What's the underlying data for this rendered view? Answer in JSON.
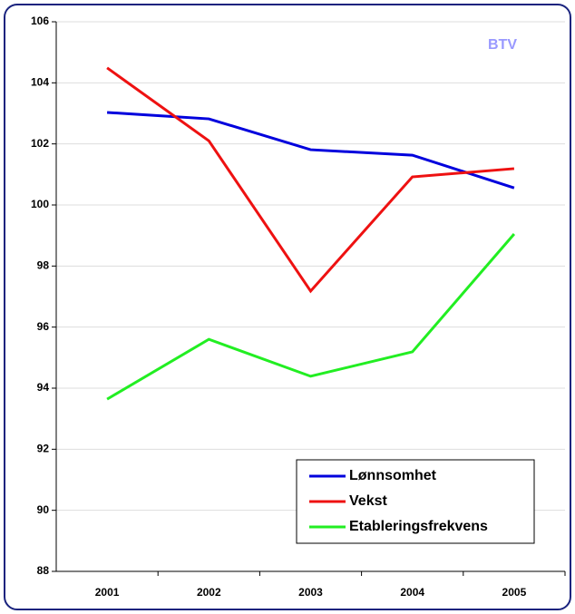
{
  "chart_data": {
    "type": "line",
    "annotation": "BTV",
    "categories": [
      "2001",
      "2002",
      "2003",
      "2004",
      "2005"
    ],
    "series": [
      {
        "name": "Lønnsomhet",
        "color": "#0000dd",
        "values": [
          103.03,
          102.82,
          101.81,
          101.63,
          100.56
        ]
      },
      {
        "name": "Vekst",
        "color": "#ee1111",
        "values": [
          104.49,
          102.1,
          97.18,
          100.92,
          101.19
        ]
      },
      {
        "name": "Etableringsfrekvens",
        "color": "#22ee22",
        "values": [
          93.64,
          95.6,
          94.39,
          95.19,
          99.05
        ]
      }
    ],
    "ylim": [
      88,
      106
    ],
    "yticks": [
      88,
      90,
      92,
      94,
      96,
      98,
      100,
      102,
      104,
      106
    ],
    "grid": true,
    "legend": "lower right"
  }
}
